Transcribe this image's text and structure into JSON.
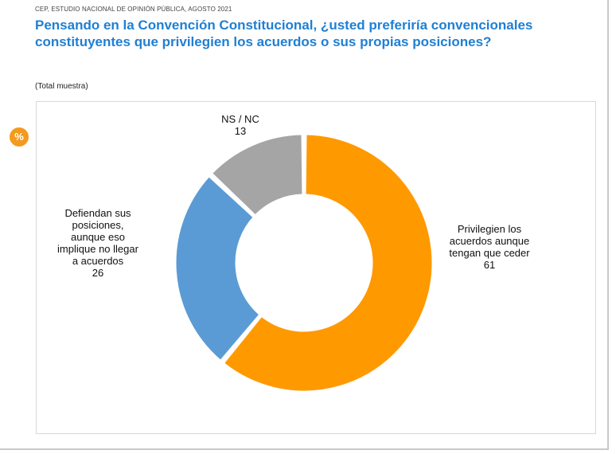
{
  "header": {
    "source": "CEP, ESTUDIO NACIONAL DE OPINIÓN PÚBLICA, AGOSTO 2021",
    "title": "Pensando en la Convención Constitucional, ¿usted preferiría convencionales constituyentes que privilegien los acuerdos o sus propias posiciones?",
    "base_note": "(Total muestra)",
    "badge": "%"
  },
  "chart_data": {
    "type": "pie",
    "donut": true,
    "start": "top, clockwise",
    "slices": [
      {
        "label_lines": [
          "Privilegien los",
          "acuerdos aunque",
          "tengan que ceder"
        ],
        "value": 61,
        "color": "#ff9900"
      },
      {
        "label_lines": [
          "Defiendan sus",
          "posiciones,",
          "aunque eso",
          "implique no llegar",
          "a acuerdos"
        ],
        "value": 26,
        "color": "#5b9bd5"
      },
      {
        "label_lines": [
          "NS / NC"
        ],
        "value": 13,
        "color": "#a5a5a5"
      }
    ]
  }
}
